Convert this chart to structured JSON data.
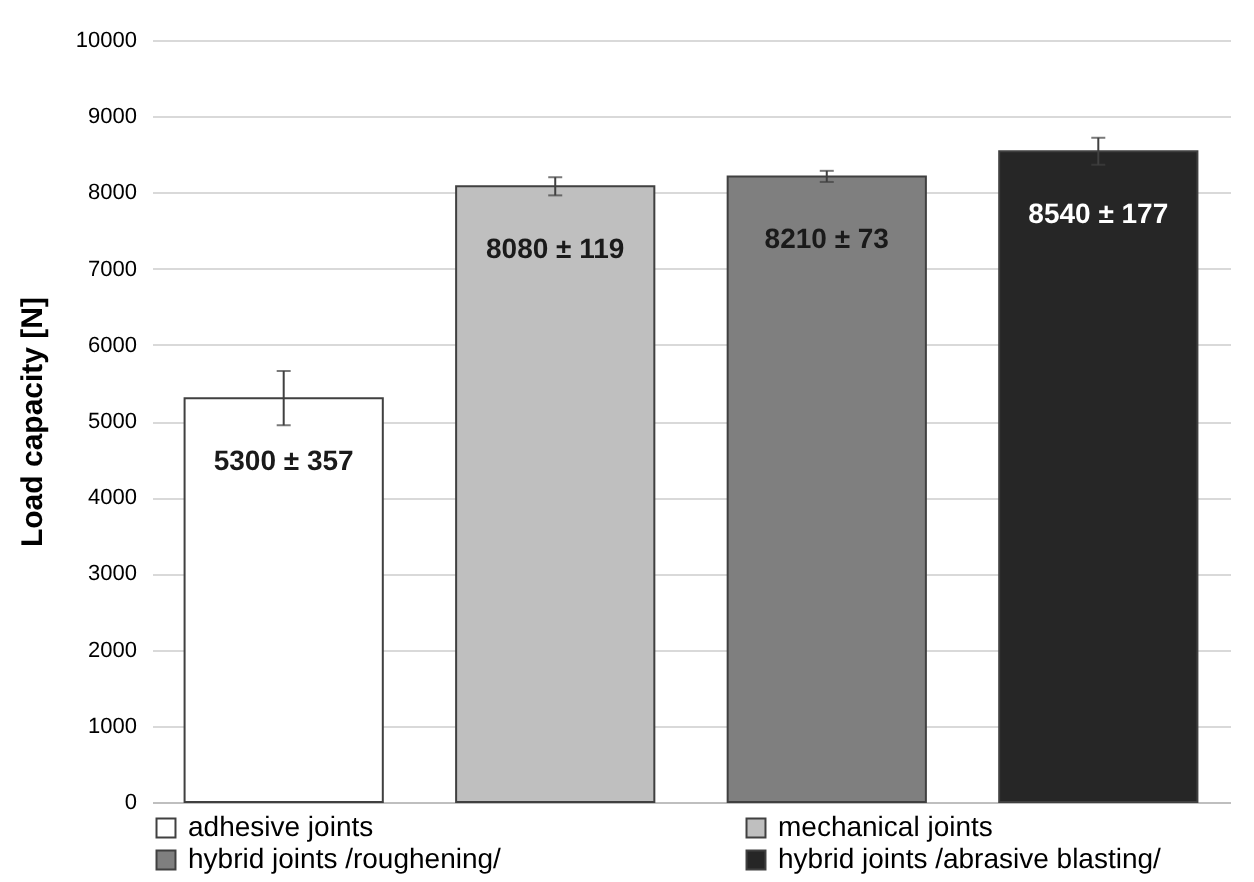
{
  "chart_data": {
    "type": "bar",
    "ylabel": "Load capacity [N]",
    "categories": [
      null,
      null,
      null,
      null
    ],
    "series": [
      {
        "name": "adhesive joints",
        "color": "#ffffff",
        "values": [
          5300,
          null,
          null,
          null
        ],
        "errors": [
          357,
          null,
          null,
          null
        ],
        "value_labels": [
          "5300 ± 357",
          null,
          null,
          null
        ]
      },
      {
        "name": "mechanical joints",
        "color": "#bfbfbf",
        "values": [
          null,
          8080,
          null,
          null
        ],
        "errors": [
          null,
          119,
          null,
          null
        ],
        "value_labels": [
          null,
          "8080 ± 119",
          null,
          null
        ]
      },
      {
        "name": "hybrid joints /roughening/",
        "color": "#7f7f7f",
        "values": [
          null,
          null,
          8210,
          null
        ],
        "errors": [
          null,
          null,
          73,
          null
        ],
        "value_labels": [
          null,
          null,
          "8210 ± 73",
          null
        ]
      },
      {
        "name": "hybrid joints /abrasive blasting/",
        "color": "#262626",
        "values": [
          null,
          null,
          null,
          8540
        ],
        "errors": [
          null,
          null,
          null,
          177
        ],
        "value_labels": [
          null,
          null,
          null,
          "8540 ± 177"
        ]
      }
    ],
    "ylim": [
      0,
      10000
    ],
    "yticks": [
      0,
      1000,
      2000,
      3000,
      4000,
      5000,
      6000,
      7000,
      8000,
      9000,
      10000
    ],
    "grid": "y",
    "legend": "bottom"
  }
}
